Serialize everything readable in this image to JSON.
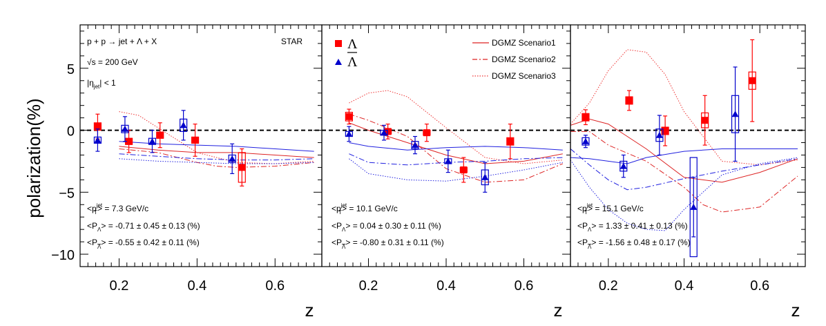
{
  "chart_data": {
    "type": "scatter",
    "ylabel": "polarization(%)",
    "xlabel": "z",
    "ylim": [
      -11,
      8.5
    ],
    "xlim": [
      0.1,
      0.72
    ],
    "xlim_panel2": [
      0.08,
      0.72
    ],
    "yticks": [
      "5",
      "0",
      "−5",
      "−10"
    ],
    "xticks": [
      "0.2",
      "0.4",
      "0.6"
    ],
    "zero_line": "dashed",
    "annotations": {
      "reaction": "p + p → jet + Λ + X",
      "sqrts": "√s = 200 GeV",
      "eta": "|ηjet| < 1",
      "experiment": "STAR"
    },
    "legend": {
      "lambda": "Λ",
      "lambdabar": "Λ",
      "s1": "DGMZ Scenario1",
      "s2": "DGMZ Scenario2",
      "s3": "DGMZ Scenario3"
    },
    "colors": {
      "lambda": "#ff0000",
      "lambdabar": "#0000cc",
      "s1": "#dd2222",
      "s2": "#dd2222",
      "s3": "#ee3333",
      "sb1": "#1f1fdf"
    },
    "panels": [
      {
        "stats": {
          "pt": "<pTjet> = 7.3 GeV/c",
          "pl": "<PΛ> = -0.71 ± 0.45 ± 0.13 (%)",
          "pb": "<PΛ> = -0.55 ± 0.42 ± 0.11 (%)"
        },
        "lambda": [
          {
            "x": 0.145,
            "y": 0.3,
            "e": 1.0,
            "s": 0.3
          },
          {
            "x": 0.225,
            "y": -0.9,
            "e": 0.9,
            "s": 0.25
          },
          {
            "x": 0.305,
            "y": -0.4,
            "e": 1.0,
            "s": 0.25
          },
          {
            "x": 0.395,
            "y": -0.8,
            "e": 1.3,
            "s": 0.25
          },
          {
            "x": 0.515,
            "y": -3.0,
            "e": 1.5,
            "s": 1.2
          }
        ],
        "lambdabar": [
          {
            "x": 0.145,
            "y": -0.8,
            "e": 0.9,
            "s": 0.25
          },
          {
            "x": 0.215,
            "y": 0.1,
            "e": 1.0,
            "s": 0.3
          },
          {
            "x": 0.285,
            "y": -0.9,
            "e": 0.9,
            "s": 0.25
          },
          {
            "x": 0.365,
            "y": 0.4,
            "e": 1.2,
            "s": 0.5
          },
          {
            "x": 0.49,
            "y": -2.3,
            "e": 1.2,
            "s": 0.3
          }
        ],
        "curves": {
          "s1": {
            "x": [
              0.2,
              0.3,
              0.4,
              0.5,
              0.6,
              0.7
            ],
            "y": [
              -1.3,
              -1.6,
              -1.8,
              -1.8,
              -2.0,
              -2.2
            ]
          },
          "s2": {
            "x": [
              0.2,
              0.3,
              0.4,
              0.45,
              0.5,
              0.6,
              0.7
            ],
            "y": [
              -1.5,
              -1.8,
              -2.6,
              -2.9,
              -3.0,
              -2.9,
              -2.6
            ]
          },
          "s3": {
            "x": [
              0.2,
              0.25,
              0.3,
              0.4,
              0.5,
              0.6,
              0.7
            ],
            "y": [
              1.5,
              1.2,
              0.2,
              -1.8,
              -2.6,
              -2.7,
              -2.5
            ]
          },
          "sb1": {
            "x": [
              0.2,
              0.3,
              0.4,
              0.5,
              0.6,
              0.7
            ],
            "y": [
              -0.9,
              -1.1,
              -1.2,
              -1.3,
              -1.5,
              -1.7
            ]
          },
          "sb2": {
            "x": [
              0.2,
              0.3,
              0.4,
              0.5,
              0.6,
              0.7
            ],
            "y": [
              -1.9,
              -2.1,
              -2.3,
              -2.4,
              -2.4,
              -2.3
            ]
          },
          "sb3": {
            "x": [
              0.2,
              0.3,
              0.4,
              0.5,
              0.6,
              0.7
            ],
            "y": [
              -2.3,
              -2.5,
              -2.6,
              -2.7,
              -2.7,
              -2.6
            ]
          }
        }
      },
      {
        "stats": {
          "pt": "<pTjet> = 10.1 GeV/c",
          "pl": "<PΛ> = 0.04 ± 0.30 ± 0.11 (%)",
          "pb": "<PΛ> = -0.80 ± 0.31 ± 0.11 (%)"
        },
        "lambda": [
          {
            "x": 0.15,
            "y": 1.1,
            "e": 0.6,
            "s": 0.35
          },
          {
            "x": 0.25,
            "y": -0.1,
            "e": 0.6,
            "s": 0.2
          },
          {
            "x": 0.35,
            "y": -0.2,
            "e": 0.7,
            "s": 0.2
          },
          {
            "x": 0.445,
            "y": -3.2,
            "e": 1.0,
            "s": 0.2
          },
          {
            "x": 0.565,
            "y": -0.9,
            "e": 1.4,
            "s": 0.3
          }
        ],
        "lambdabar": [
          {
            "x": 0.15,
            "y": -0.3,
            "e": 0.6,
            "s": 0.2
          },
          {
            "x": 0.24,
            "y": -0.2,
            "e": 0.6,
            "s": 0.2
          },
          {
            "x": 0.32,
            "y": -1.2,
            "e": 0.7,
            "s": 0.3
          },
          {
            "x": 0.405,
            "y": -2.5,
            "e": 0.9,
            "s": 0.2
          },
          {
            "x": 0.5,
            "y": -3.8,
            "e": 1.2,
            "s": 0.6
          }
        ],
        "curves": {
          "s1": {
            "x": [
              0.15,
              0.2,
              0.3,
              0.4,
              0.5,
              0.6,
              0.7
            ],
            "y": [
              0.6,
              0.0,
              -1.0,
              -2.0,
              -2.7,
              -2.5,
              -1.9
            ]
          },
          "s2": {
            "x": [
              0.15,
              0.2,
              0.3,
              0.4,
              0.5,
              0.6,
              0.7
            ],
            "y": [
              1.3,
              0.8,
              -0.5,
              -3.1,
              -4.2,
              -4.0,
              -2.7
            ]
          },
          "s3": {
            "x": [
              0.15,
              0.2,
              0.25,
              0.3,
              0.4,
              0.5,
              0.6,
              0.7
            ],
            "y": [
              2.2,
              3.0,
              3.2,
              2.7,
              0.2,
              -2.2,
              -2.7,
              -2.4
            ]
          },
          "sb1": {
            "x": [
              0.15,
              0.2,
              0.3,
              0.4,
              0.5,
              0.6,
              0.7
            ],
            "y": [
              -1.0,
              -1.3,
              -1.6,
              -1.4,
              -1.3,
              -1.4,
              -1.6
            ]
          },
          "sb2": {
            "x": [
              0.15,
              0.2,
              0.3,
              0.4,
              0.5,
              0.6,
              0.7
            ],
            "y": [
              -1.9,
              -2.6,
              -2.8,
              -2.6,
              -2.5,
              -2.3,
              -2.2
            ]
          },
          "sb3": {
            "x": [
              0.15,
              0.2,
              0.3,
              0.4,
              0.5,
              0.6,
              0.7
            ],
            "y": [
              -2.3,
              -3.5,
              -4.0,
              -4.1,
              -3.7,
              -3.2,
              -2.6
            ]
          }
        }
      },
      {
        "stats": {
          "pt": "<pTjet> = 15.1 GeV/c",
          "pl": "<PΛ> = 1.33 ± 0.41 ± 0.13 (%)",
          "pb": "<PΛ> = -1.56 ± 0.48 ± 0.17 (%)"
        },
        "lambda": [
          {
            "x": 0.14,
            "y": 1.05,
            "e": 0.6,
            "s": 0.3
          },
          {
            "x": 0.255,
            "y": 2.4,
            "e": 0.8,
            "s": 0.3
          },
          {
            "x": 0.35,
            "y": -0.05,
            "e": 1.2,
            "s": 0.3
          },
          {
            "x": 0.455,
            "y": 0.8,
            "e": 2.0,
            "s": 0.6
          },
          {
            "x": 0.58,
            "y": 4.0,
            "e": 3.3,
            "s": 0.7
          }
        ],
        "lambdabar": [
          {
            "x": 0.14,
            "y": -0.9,
            "e": 0.5,
            "s": 0.3
          },
          {
            "x": 0.24,
            "y": -2.9,
            "e": 0.9,
            "s": 0.4
          },
          {
            "x": 0.335,
            "y": -0.4,
            "e": 1.6,
            "s": 0.5
          },
          {
            "x": 0.425,
            "y": -6.2,
            "e": 2.4,
            "s": 4.0
          },
          {
            "x": 0.535,
            "y": 1.3,
            "e": 3.8,
            "s": 1.5
          }
        ],
        "curves": {
          "s1": {
            "x": [
              0.1,
              0.15,
              0.2,
              0.3,
              0.4,
              0.5,
              0.6,
              0.7
            ],
            "y": [
              0.4,
              0.9,
              0.5,
              -1.5,
              -3.8,
              -4.2,
              -3.4,
              -2.3
            ]
          },
          "s2": {
            "x": [
              0.1,
              0.15,
              0.2,
              0.3,
              0.4,
              0.45,
              0.5,
              0.6,
              0.7
            ],
            "y": [
              -0.1,
              -0.1,
              -1.2,
              -2.5,
              -4.6,
              -6.0,
              -6.6,
              -6.2,
              -3.7
            ]
          },
          "s3": {
            "x": [
              0.1,
              0.15,
              0.2,
              0.25,
              0.3,
              0.35,
              0.4,
              0.5,
              0.6,
              0.7
            ],
            "y": [
              0.5,
              2.2,
              4.8,
              6.5,
              6.3,
              4.5,
              1.5,
              -2.5,
              -2.8,
              -2.4
            ]
          },
          "sb1": {
            "x": [
              0.1,
              0.15,
              0.2,
              0.25,
              0.3,
              0.4,
              0.5,
              0.6,
              0.7
            ],
            "y": [
              -2.2,
              -2.3,
              -2.5,
              -2.7,
              -2.2,
              -1.7,
              -1.5,
              -1.5,
              -1.5
            ]
          },
          "sb2": {
            "x": [
              0.1,
              0.15,
              0.2,
              0.25,
              0.3,
              0.4,
              0.5,
              0.6,
              0.7
            ],
            "y": [
              -1.5,
              -2.8,
              -4.0,
              -4.8,
              -4.6,
              -3.9,
              -3.3,
              -2.8,
              -2.3
            ]
          },
          "sb3": {
            "x": [
              0.1,
              0.15,
              0.2,
              0.25,
              0.3,
              0.35,
              0.4,
              0.5,
              0.6,
              0.7
            ],
            "y": [
              -2.4,
              -4.6,
              -6.4,
              -7.5,
              -8.0,
              -8.1,
              -6.4,
              -3.6,
              -2.7,
              -2.2
            ]
          }
        }
      }
    ]
  }
}
